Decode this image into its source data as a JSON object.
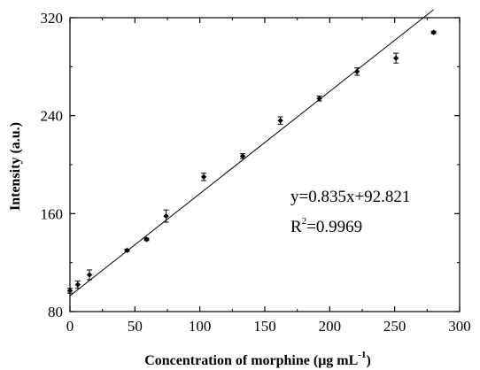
{
  "chart_data": {
    "type": "scatter",
    "title": "",
    "xlabel": "Concentration of morphine (μg mL",
    "xlabel_sup": "-1",
    "xlabel_end": ")",
    "ylabel": "Intensity (a.u.)",
    "xlim": [
      0,
      300
    ],
    "ylim": [
      80,
      320
    ],
    "xticks": [
      0,
      50,
      100,
      150,
      200,
      250,
      300
    ],
    "yticks": [
      80,
      160,
      240,
      320
    ],
    "grid": false,
    "legend": "none",
    "series": [
      {
        "marker": "diamond",
        "color": "#000000",
        "points": [
          {
            "x": 0,
            "y": 97,
            "err": 2
          },
          {
            "x": 6,
            "y": 102,
            "err": 3
          },
          {
            "x": 15,
            "y": 110,
            "err": 4
          },
          {
            "x": 44,
            "y": 130,
            "err": 1
          },
          {
            "x": 59,
            "y": 139,
            "err": 1
          },
          {
            "x": 74,
            "y": 158,
            "err": 5
          },
          {
            "x": 103,
            "y": 190,
            "err": 3
          },
          {
            "x": 133,
            "y": 207,
            "err": 2
          },
          {
            "x": 162,
            "y": 236,
            "err": 3
          },
          {
            "x": 192,
            "y": 254,
            "err": 2
          },
          {
            "x": 221,
            "y": 276,
            "err": 3
          },
          {
            "x": 251,
            "y": 287,
            "err": 4
          },
          {
            "x": 280,
            "y": 308,
            "err": 1
          }
        ]
      }
    ],
    "fit": {
      "slope": 0.835,
      "intercept": 92.821,
      "x_range": [
        0,
        280
      ],
      "equation": "y=0.835x+92.821",
      "r2_label": "R",
      "r2_sup": "2",
      "r2_value": "=0.9969"
    }
  }
}
